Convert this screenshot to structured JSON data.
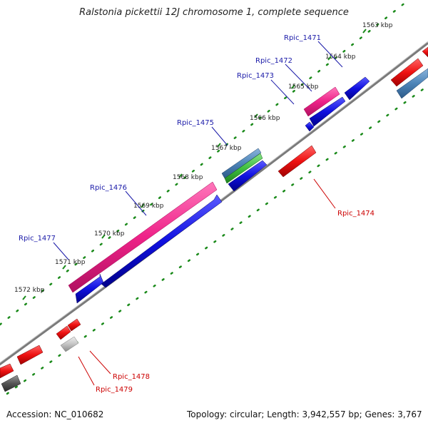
{
  "title": "Ralstonia pickettii 12J chromosome 1, complete sequence",
  "footer": {
    "accession": "Accession: NC_010682",
    "summary": "Topology: circular; Length: 3,942,557 bp; Genes: 3,767"
  },
  "ticks": [
    {
      "label": "1563 kbp"
    },
    {
      "label": "1564 kbp"
    },
    {
      "label": "1565 kbp"
    },
    {
      "label": "1566 kbp"
    },
    {
      "label": "1567 kbp"
    },
    {
      "label": "1568 kbp"
    },
    {
      "label": "1569 kbp"
    },
    {
      "label": "1570 kbp"
    },
    {
      "label": "1571 kbp"
    },
    {
      "label": "1572 kbp"
    }
  ],
  "gene_labels": [
    {
      "label": "Rpic_1471",
      "strand": "forward"
    },
    {
      "label": "Rpic_1472",
      "strand": "forward"
    },
    {
      "label": "Rpic_1473",
      "strand": "forward"
    },
    {
      "label": "Rpic_1475",
      "strand": "forward"
    },
    {
      "label": "Rpic_1476",
      "strand": "forward"
    },
    {
      "label": "Rpic_1477",
      "strand": "forward"
    },
    {
      "label": "Rpic_1474",
      "strand": "reverse"
    },
    {
      "label": "Rpic_1478",
      "strand": "reverse"
    },
    {
      "label": "Rpic_1479",
      "strand": "reverse"
    }
  ],
  "colors": {
    "forward_label": "#1a1aa8",
    "reverse_label": "#cc0000",
    "cds_blue": "#1010e0",
    "magenta": "#ee2288",
    "steel": "#4d84b8",
    "green": "#3fbf3f",
    "red": "#ee1111",
    "gray_light": "#c4c4c4",
    "gray_dark": "#555555",
    "backbone": "#7a7a7a",
    "dot_green": "#1a8a1a"
  }
}
